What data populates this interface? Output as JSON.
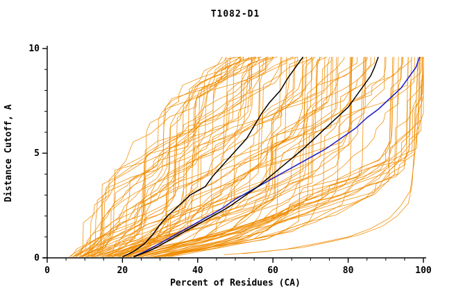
{
  "title": "T1082-D1",
  "chart_data": {
    "type": "line",
    "title": "T1082-D1",
    "xlabel": "Percent of Residues (CA)",
    "ylabel": "Distance Cutoff, A",
    "xlim": [
      0,
      100
    ],
    "ylim": [
      0,
      10
    ],
    "x_major_ticks": [
      0,
      20,
      40,
      60,
      80,
      100
    ],
    "x_minor_step": 5,
    "y_major_ticks": [
      0,
      5,
      10
    ],
    "y_minor_step": 1,
    "grid": false,
    "legend": "none",
    "colors": {
      "ensemble": "#f08c00",
      "highlight": "#2020c8",
      "reference": "#000000",
      "axis": "#000000"
    },
    "ensemble": {
      "name": "server-model-gdt-curves",
      "color": "#f08c00",
      "count": 95,
      "seed": 1082,
      "line_width": 0.8,
      "envelope_y": [
        0,
        1,
        2,
        3,
        4,
        5,
        6,
        7,
        8,
        9.6
      ],
      "envelope_min_x": [
        6,
        8,
        10,
        13,
        16,
        20,
        25,
        30,
        35,
        45
      ],
      "envelope_max_x": [
        30,
        60,
        75,
        85,
        92,
        96,
        98,
        99,
        99.5,
        100
      ]
    },
    "outlier_series": [
      {
        "name": "orange-low-outlier-1",
        "color": "#f08c00",
        "width": 0.8,
        "points": [
          [
            47,
            0.15
          ],
          [
            58,
            0.3
          ],
          [
            68,
            0.5
          ],
          [
            76,
            0.8
          ],
          [
            83,
            1.1
          ],
          [
            89,
            1.5
          ],
          [
            93,
            2.0
          ],
          [
            96,
            2.6
          ],
          [
            97,
            3.5
          ],
          [
            97.5,
            5.0
          ],
          [
            98,
            7.0
          ],
          [
            98.5,
            9.6
          ]
        ]
      },
      {
        "name": "orange-low-outlier-2",
        "color": "#f08c00",
        "width": 0.8,
        "points": [
          [
            52,
            0.2
          ],
          [
            63,
            0.4
          ],
          [
            72,
            0.7
          ],
          [
            80,
            1.0
          ],
          [
            86,
            1.4
          ],
          [
            91,
            1.9
          ],
          [
            94,
            2.5
          ],
          [
            96.5,
            3.2
          ],
          [
            97.5,
            4.5
          ],
          [
            98.5,
            6.5
          ],
          [
            99,
            9.6
          ]
        ]
      }
    ],
    "series": [
      {
        "name": "highlight-model-blue",
        "color": "#2020c8",
        "width": 1.6,
        "points": [
          [
            23,
            0.05
          ],
          [
            26,
            0.3
          ],
          [
            30,
            0.7
          ],
          [
            34,
            1.1
          ],
          [
            38,
            1.5
          ],
          [
            42,
            1.9
          ],
          [
            46,
            2.3
          ],
          [
            50,
            2.8
          ],
          [
            55,
            3.3
          ],
          [
            60,
            3.8
          ],
          [
            65,
            4.3
          ],
          [
            70,
            4.8
          ],
          [
            74,
            5.2
          ],
          [
            78,
            5.7
          ],
          [
            82,
            6.2
          ],
          [
            85,
            6.7
          ],
          [
            88,
            7.1
          ],
          [
            91,
            7.6
          ],
          [
            94,
            8.1
          ],
          [
            96,
            8.6
          ],
          [
            98,
            9.1
          ],
          [
            99,
            9.6
          ]
        ]
      },
      {
        "name": "reference-model-black-1",
        "color": "#000000",
        "width": 1.5,
        "points": [
          [
            20,
            0.05
          ],
          [
            23,
            0.3
          ],
          [
            26,
            0.7
          ],
          [
            28,
            1.1
          ],
          [
            30,
            1.6
          ],
          [
            32,
            2.0
          ],
          [
            35,
            2.5
          ],
          [
            38,
            3.0
          ],
          [
            42,
            3.4
          ],
          [
            44,
            3.9
          ],
          [
            47,
            4.5
          ],
          [
            50,
            5.1
          ],
          [
            53,
            5.7
          ],
          [
            55,
            6.3
          ],
          [
            57,
            6.9
          ],
          [
            59,
            7.4
          ],
          [
            62,
            8.0
          ],
          [
            64,
            8.6
          ],
          [
            66,
            9.1
          ],
          [
            68,
            9.6
          ]
        ]
      },
      {
        "name": "reference-model-black-2",
        "color": "#000000",
        "width": 1.5,
        "points": [
          [
            23,
            0.05
          ],
          [
            28,
            0.4
          ],
          [
            33,
            0.9
          ],
          [
            38,
            1.4
          ],
          [
            43,
            1.9
          ],
          [
            48,
            2.4
          ],
          [
            52,
            2.9
          ],
          [
            56,
            3.4
          ],
          [
            60,
            4.0
          ],
          [
            64,
            4.6
          ],
          [
            68,
            5.2
          ],
          [
            71,
            5.7
          ],
          [
            74,
            6.2
          ],
          [
            77,
            6.7
          ],
          [
            80,
            7.2
          ],
          [
            82,
            7.7
          ],
          [
            84,
            8.2
          ],
          [
            86,
            8.7
          ],
          [
            87,
            9.1
          ],
          [
            88,
            9.6
          ]
        ]
      }
    ]
  }
}
